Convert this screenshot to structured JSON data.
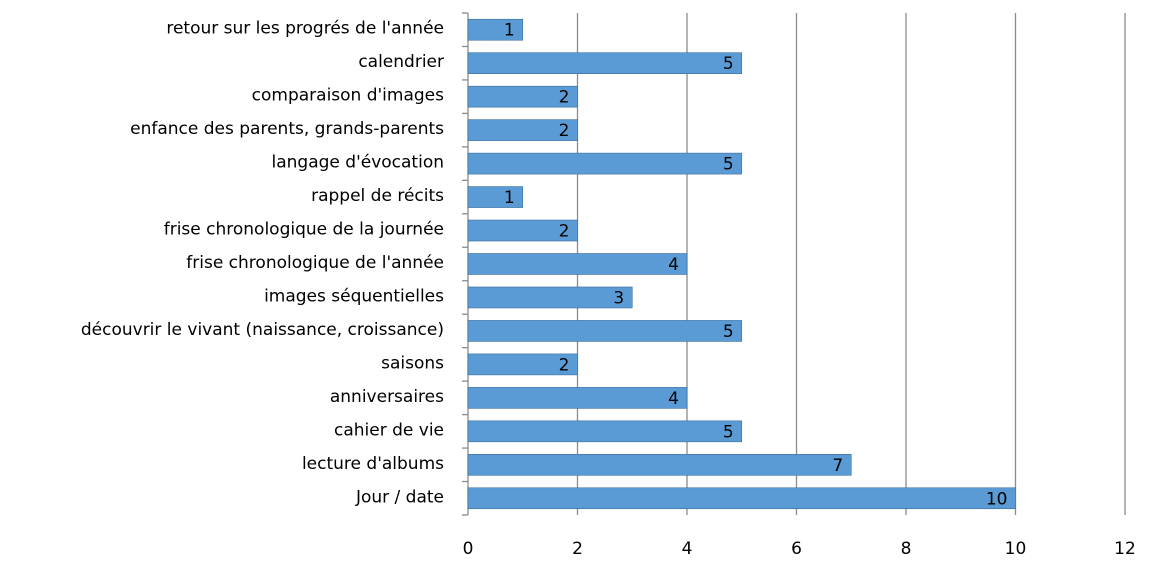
{
  "chart_data": {
    "type": "barh",
    "categories": [
      "retour sur les progrés de l'année",
      "calendrier",
      "comparaison d'images",
      "enfance des parents, grands-parents",
      "langage d'évocation",
      "rappel de récits",
      "frise chronologique de la journée",
      "frise chronologique de l'année",
      "images séquentielles",
      "découvrir le vivant (naissance, croissance)",
      "saisons",
      "anniversaires",
      "cahier de vie",
      "lecture d'albums",
      "Jour / date"
    ],
    "values": [
      1,
      5,
      2,
      2,
      5,
      1,
      2,
      4,
      3,
      5,
      2,
      4,
      5,
      7,
      10
    ],
    "color": "#5b9bd5",
    "xlim": [
      0,
      12
    ],
    "xticks": [
      0,
      2,
      4,
      6,
      8,
      10,
      12
    ],
    "grid": true
  }
}
